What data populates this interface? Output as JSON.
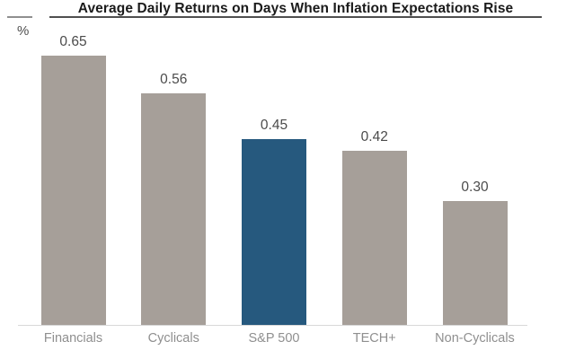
{
  "header": {
    "title": "Average Daily Returns on Days When Inflation Expectations Rise",
    "y_axis_unit": "%"
  },
  "chart_data": {
    "type": "bar",
    "title": "Average Daily Returns on Days When Inflation Expectations Rise",
    "xlabel": "",
    "ylabel": "%",
    "categories": [
      "Financials",
      "Cyclicals",
      "S&P 500",
      "TECH+",
      "Non-Cyclicals"
    ],
    "values": [
      0.65,
      0.56,
      0.45,
      0.42,
      0.3
    ],
    "value_labels": [
      "0.65",
      "0.56",
      "0.45",
      "0.42",
      "0.30"
    ],
    "highlighted_category": "S&P 500",
    "ylim": [
      0,
      0.7
    ],
    "grid": false,
    "legend": false,
    "colors": {
      "bar_default": "#a69f99",
      "bar_highlight": "#26597e",
      "title_text": "#1b1b1b",
      "title_rule": "#4f4f4f",
      "left_rule": "#8f8f8f",
      "value_label": "#4b4b4b",
      "category_label": "#8f8f8f",
      "axis_line": "#d8d8d8",
      "background": "#ffffff"
    }
  }
}
